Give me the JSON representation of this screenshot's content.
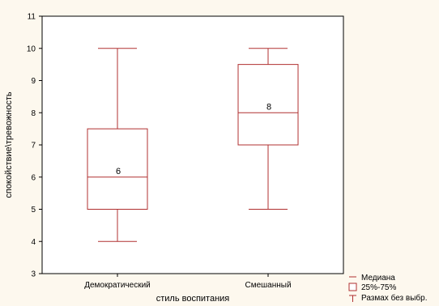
{
  "chart_data": {
    "type": "boxplot",
    "xlabel": "стиль воспитания",
    "ylabel": "спокойствие\\тревожность",
    "ylim": [
      3,
      11
    ],
    "yticks": [
      3,
      4,
      5,
      6,
      7,
      8,
      9,
      10,
      11
    ],
    "grid": false,
    "legend_position": "bottom-right",
    "color": "#b03030",
    "categories": [
      "Демократический",
      "Смешанный"
    ],
    "series": [
      {
        "category": "Демократический",
        "min": 4,
        "q1": 5,
        "median": 6,
        "q3": 7.5,
        "max": 10,
        "median_label": "6"
      },
      {
        "category": "Смешанный",
        "min": 5,
        "q1": 7,
        "median": 8,
        "q3": 9.5,
        "max": 10,
        "median_label": "8"
      }
    ],
    "legend": [
      {
        "symbol": "median-line",
        "label": "Медиана"
      },
      {
        "symbol": "box",
        "label": "25%-75%"
      },
      {
        "symbol": "whisker",
        "label": "Размах без выбр."
      }
    ]
  }
}
